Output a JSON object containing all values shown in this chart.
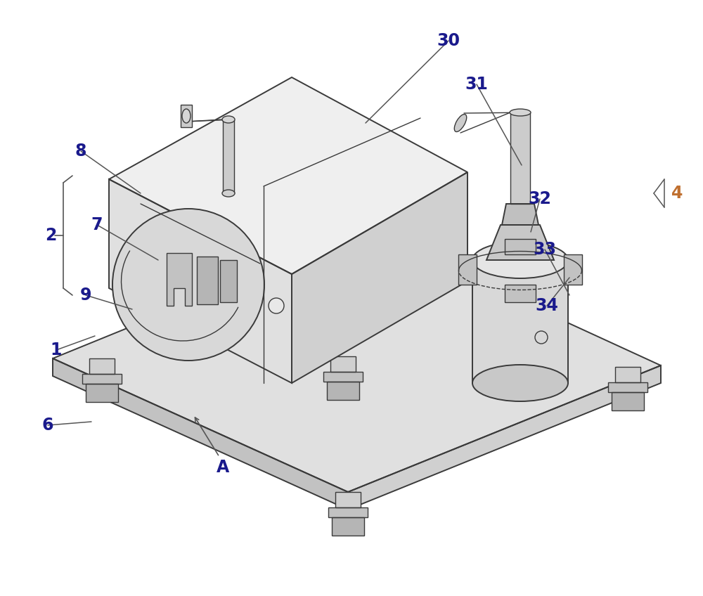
{
  "bg_color": "#ffffff",
  "line_color": "#3a3a3a",
  "label_blue": "#1a1a8c",
  "label_orange": "#c07030",
  "lw": 1.4,
  "lw_thin": 1.0,
  "lw_thick": 2.2,
  "face_light": "#efefef",
  "face_mid": "#e0e0e0",
  "face_dark": "#d0d0d0",
  "face_darker": "#c2c2c2",
  "face_darkest": "#b5b5b5"
}
